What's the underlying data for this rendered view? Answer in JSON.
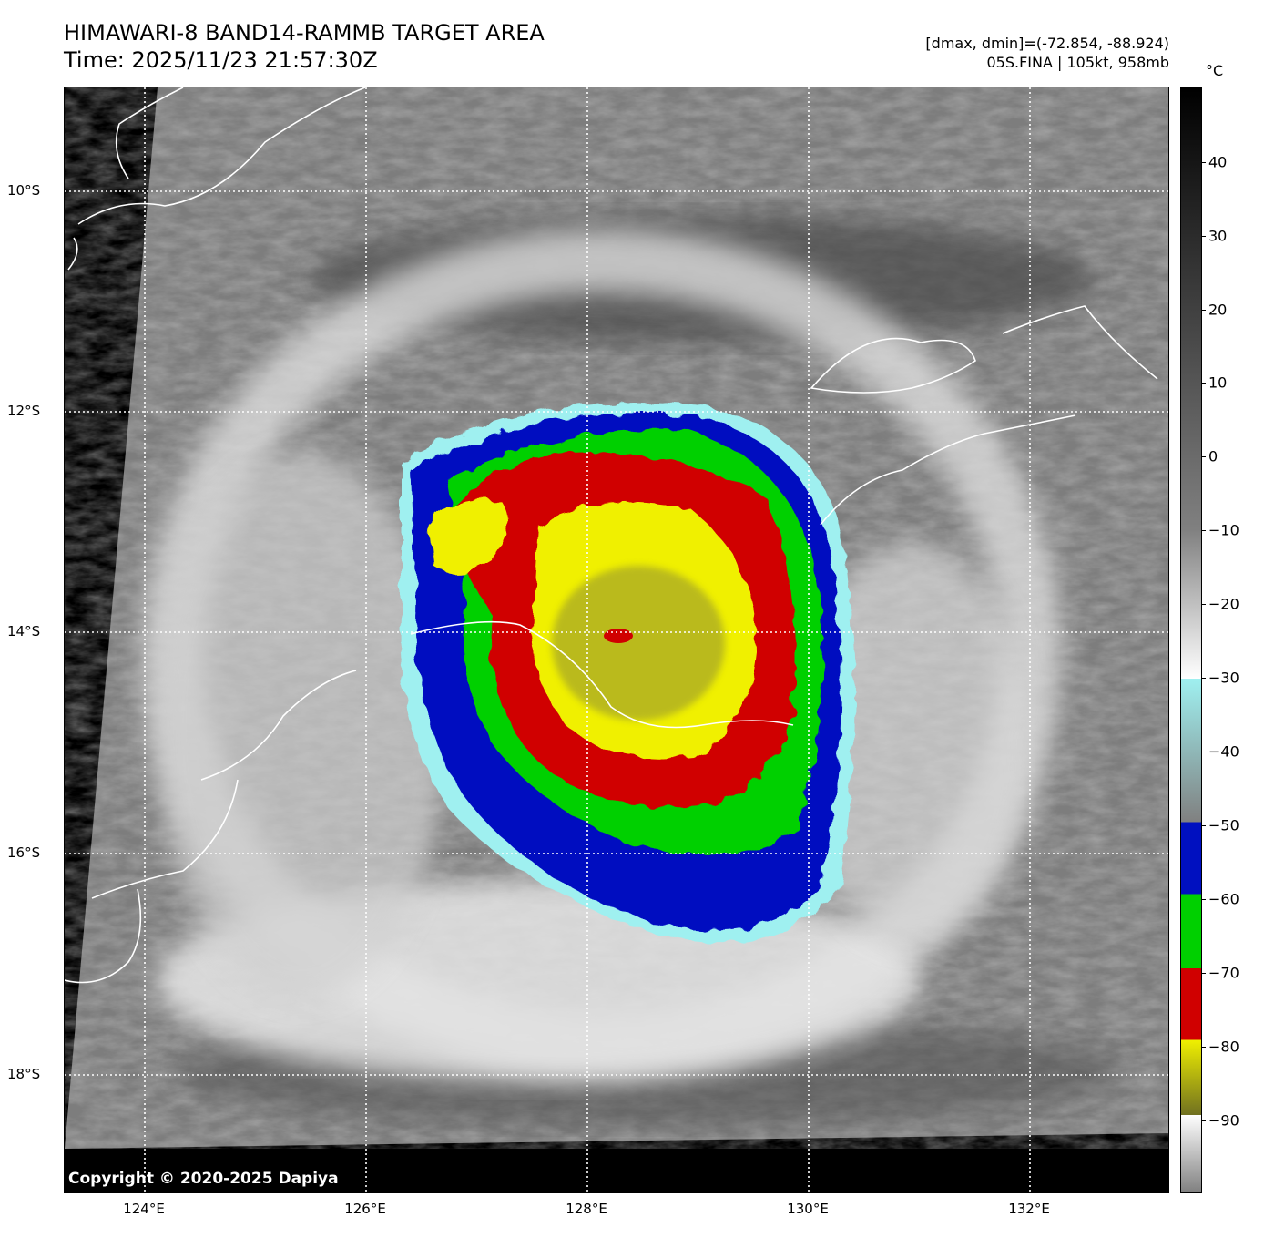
{
  "header": {
    "title_line1": "HIMAWARI-8 BAND14-RAMMB TARGET AREA",
    "title_line2": "Time: 2025/11/23 21:57:30Z",
    "info_line1": "[dmax, dmin]=(-72.854, -88.924)",
    "info_line2": "05S.FINA | 105kt, 958mb"
  },
  "map": {
    "copyright": "Copyright © 2020-2025 Dapiya",
    "x_ticks": [
      "124°E",
      "126°E",
      "128°E",
      "130°E",
      "132°E"
    ],
    "y_ticks": [
      "10°S",
      "12°S",
      "14°S",
      "16°S",
      "18°S"
    ]
  },
  "colorbar": {
    "unit": "°C",
    "ticks": [
      "40",
      "30",
      "20",
      "10",
      "0",
      "−10",
      "−20",
      "−30",
      "−40",
      "−50",
      "−60",
      "−70",
      "−80",
      "−90"
    ],
    "colors": {
      "warm_top": "#000000",
      "cloud_gray": "#808080",
      "cold_white": "#ffffff",
      "cyan": "#9ff0f0",
      "blue": "#0010c0",
      "green": "#00d000",
      "red": "#d00000",
      "yellow": "#f0f000",
      "olive": "#707020"
    }
  }
}
